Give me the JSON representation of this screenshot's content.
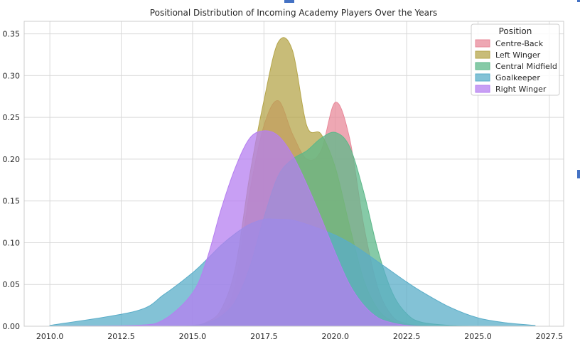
{
  "chart_data": {
    "type": "area",
    "title": "Positional Distribution of Incoming Academy Players Over the Years",
    "xlabel": "",
    "ylabel": "",
    "xlim": [
      2009.1,
      2028.0
    ],
    "ylim": [
      0,
      0.365
    ],
    "x_ticks": [
      "2010.0",
      "2012.5",
      "2015.0",
      "2017.5",
      "2020.0",
      "2022.5",
      "2025.0",
      "2027.5"
    ],
    "x_tick_values": [
      2010.0,
      2012.5,
      2015.0,
      2017.5,
      2020.0,
      2022.5,
      2025.0,
      2027.5
    ],
    "y_ticks": [
      "0.00",
      "0.05",
      "0.10",
      "0.15",
      "0.20",
      "0.25",
      "0.30",
      "0.35"
    ],
    "y_tick_values": [
      0.0,
      0.05,
      0.1,
      0.15,
      0.2,
      0.25,
      0.3,
      0.35
    ],
    "grid": true,
    "legend": {
      "title": "Position",
      "placement": "top-right"
    },
    "x": [
      2010.0,
      2013.0,
      2014.0,
      2015.0,
      2015.5,
      2016.0,
      2016.5,
      2017.0,
      2017.5,
      2018.0,
      2018.5,
      2019.0,
      2019.5,
      2020.0,
      2020.5,
      2021.0,
      2021.5,
      2022.0,
      2022.5,
      2023.0,
      2024.0,
      2025.0,
      2026.0,
      2027.0
    ],
    "series": [
      {
        "name": "Centre-Back",
        "color": "#e8899a",
        "values": [
          0,
          0,
          0,
          0.001,
          0.004,
          0.012,
          0.05,
          0.16,
          0.24,
          0.27,
          0.23,
          0.2,
          0.21,
          0.268,
          0.225,
          0.12,
          0.045,
          0.012,
          0.003,
          0.001,
          0,
          0,
          0,
          0
        ]
      },
      {
        "name": "Left Winger",
        "color": "#b5a64b",
        "values": [
          0,
          0,
          0,
          0.001,
          0.005,
          0.02,
          0.07,
          0.18,
          0.27,
          0.34,
          0.33,
          0.24,
          0.23,
          0.19,
          0.12,
          0.055,
          0.02,
          0.006,
          0.001,
          0,
          0,
          0,
          0,
          0
        ]
      },
      {
        "name": "Central Midfield",
        "color": "#5db88a",
        "values": [
          0,
          0,
          0,
          0.001,
          0.004,
          0.012,
          0.03,
          0.07,
          0.13,
          0.18,
          0.2,
          0.21,
          0.225,
          0.232,
          0.215,
          0.16,
          0.09,
          0.04,
          0.015,
          0.005,
          0.001,
          0,
          0,
          0
        ]
      },
      {
        "name": "Goalkeeper",
        "color": "#5aadc8",
        "values": [
          0.001,
          0.018,
          0.038,
          0.064,
          0.08,
          0.097,
          0.111,
          0.122,
          0.128,
          0.128,
          0.127,
          0.122,
          0.116,
          0.109,
          0.1,
          0.089,
          0.077,
          0.065,
          0.053,
          0.042,
          0.023,
          0.01,
          0.004,
          0.001
        ]
      },
      {
        "name": "Right Winger",
        "color": "#b57ff0",
        "values": [
          0,
          0.001,
          0.008,
          0.04,
          0.08,
          0.14,
          0.19,
          0.225,
          0.234,
          0.228,
          0.205,
          0.17,
          0.13,
          0.088,
          0.05,
          0.025,
          0.01,
          0.004,
          0.001,
          0,
          0,
          0,
          0,
          0
        ]
      }
    ]
  }
}
